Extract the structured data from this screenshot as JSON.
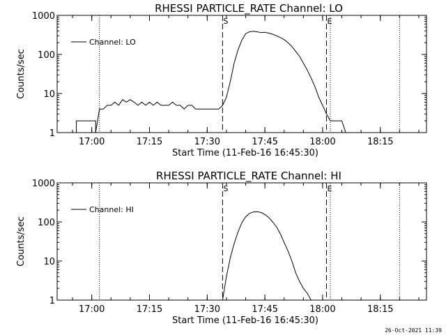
{
  "footer": {
    "timestamp": "26-Oct-2021 11:39"
  },
  "chart_data": [
    {
      "type": "line",
      "title": "RHESSI PARTICLE_RATE Channel: LO",
      "xlabel": "Start Time (11-Feb-16 16:45:30)",
      "ylabel": "Counts/sec",
      "yscale": "log",
      "ylim": [
        1,
        1000
      ],
      "yticks": [
        1,
        10,
        100,
        1000
      ],
      "ytick_labels": [
        "1",
        "10",
        "100",
        "1000"
      ],
      "xlim": [
        "16:51",
        "18:27"
      ],
      "xticks": [
        "17:00",
        "17:15",
        "17:30",
        "17:45",
        "18:00",
        "18:15"
      ],
      "grid": false,
      "legend": {
        "position": "top-left",
        "entries": [
          "Channel: LO"
        ]
      },
      "markers": [
        {
          "label": "S",
          "time": "17:34",
          "style": "dashed"
        },
        {
          "label": "E",
          "time": "18:01",
          "style": "dashed"
        }
      ],
      "dotted_lines": [
        "17:02",
        "18:02",
        "18:20"
      ],
      "series": [
        {
          "name": "Channel: LO",
          "x": [
            "16:51",
            "16:51",
            "16:51",
            "16:51",
            "16:56",
            "16:56",
            "17:01",
            "17:01",
            "17:02",
            "17:03",
            "17:04",
            "17:05",
            "17:06",
            "17:07",
            "17:08",
            "17:09",
            "17:10",
            "17:11",
            "17:12",
            "17:13",
            "17:14",
            "17:15",
            "17:16",
            "17:17",
            "17:18",
            "17:19",
            "17:20",
            "17:21",
            "17:22",
            "17:23",
            "17:24",
            "17:25",
            "17:26",
            "17:27",
            "17:28",
            "17:29",
            "17:30",
            "17:31",
            "17:32",
            "17:33",
            "17:34",
            "17:35",
            "17:36",
            "17:37",
            "17:38",
            "17:39",
            "17:40",
            "17:41",
            "17:42",
            "17:43",
            "17:44",
            "17:45",
            "17:46",
            "17:47",
            "17:48",
            "17:49",
            "17:50",
            "17:51",
            "17:52",
            "17:53",
            "17:54",
            "17:55",
            "17:56",
            "17:57",
            "17:58",
            "17:59",
            "18:00",
            "18:01",
            "18:02",
            "18:03",
            "18:04",
            "18:05",
            "18:06"
          ],
          "y": [
            1,
            2,
            2,
            1,
            1,
            2,
            2,
            1,
            4,
            4,
            5,
            5,
            6,
            5,
            7,
            6,
            7,
            6,
            5,
            6,
            5,
            6,
            5,
            6,
            5,
            5,
            5,
            6,
            5,
            5,
            4,
            5,
            5,
            4,
            4,
            4,
            4,
            4,
            4,
            4,
            5,
            8,
            20,
            60,
            130,
            230,
            340,
            380,
            390,
            380,
            360,
            370,
            350,
            330,
            300,
            270,
            240,
            200,
            160,
            120,
            90,
            60,
            40,
            25,
            15,
            8,
            5,
            3,
            2,
            2,
            2,
            2,
            1
          ]
        }
      ]
    },
    {
      "type": "line",
      "title": "RHESSI PARTICLE_RATE Channel: HI",
      "xlabel": "Start Time (11-Feb-16 16:45:30)",
      "ylabel": "Counts/sec",
      "yscale": "log",
      "ylim": [
        1,
        1000
      ],
      "yticks": [
        1,
        10,
        100,
        1000
      ],
      "ytick_labels": [
        "1",
        "10",
        "100",
        "1000"
      ],
      "xlim": [
        "16:51",
        "18:27"
      ],
      "xticks": [
        "17:00",
        "17:15",
        "17:30",
        "17:45",
        "18:00",
        "18:15"
      ],
      "grid": false,
      "legend": {
        "position": "top-left",
        "entries": [
          "Channel: HI"
        ]
      },
      "markers": [
        {
          "label": "S",
          "time": "17:34",
          "style": "dashed"
        },
        {
          "label": "E",
          "time": "18:01",
          "style": "dashed"
        }
      ],
      "dotted_lines": [
        "17:02",
        "18:02",
        "18:20"
      ],
      "series": [
        {
          "name": "Channel: HI",
          "x": [
            "17:34",
            "17:35",
            "17:36",
            "17:37",
            "17:38",
            "17:39",
            "17:40",
            "17:41",
            "17:42",
            "17:43",
            "17:44",
            "17:45",
            "17:46",
            "17:47",
            "17:48",
            "17:49",
            "17:50",
            "17:51",
            "17:52",
            "17:53",
            "17:54",
            "17:55",
            "17:56",
            "17:57"
          ],
          "y": [
            1,
            4,
            12,
            28,
            55,
            95,
            135,
            165,
            180,
            182,
            175,
            155,
            130,
            100,
            75,
            50,
            30,
            18,
            10,
            5,
            3,
            2,
            1.5,
            1
          ]
        }
      ]
    }
  ]
}
